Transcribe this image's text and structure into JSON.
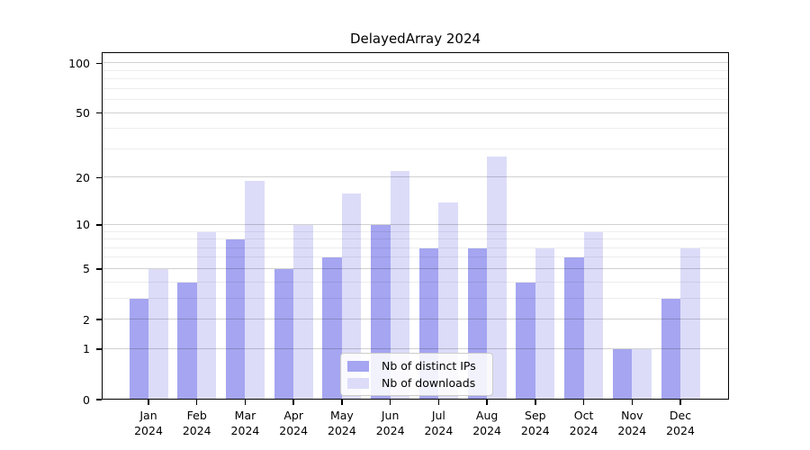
{
  "chart_data": {
    "type": "bar",
    "title": "DelayedArray 2024",
    "year_label": "2024",
    "categories": [
      "Jan",
      "Feb",
      "Mar",
      "Apr",
      "May",
      "Jun",
      "Jul",
      "Aug",
      "Sep",
      "Oct",
      "Nov",
      "Dec"
    ],
    "series": [
      {
        "name": "Nb of distinct IPs",
        "color": "#a5a5f1",
        "values": [
          3,
          4,
          8,
          5,
          6,
          10,
          7,
          7,
          4,
          6,
          1,
          3
        ]
      },
      {
        "name": "Nb of downloads",
        "color": "#dcdcf9",
        "values": [
          5,
          9,
          19,
          10,
          16,
          22,
          14,
          27,
          7,
          9,
          1,
          7
        ]
      }
    ],
    "yscale": "log10(1+y)",
    "ylim": [
      0,
      116.5
    ],
    "yticks": [
      0,
      1,
      2,
      5,
      10,
      20,
      50,
      100
    ],
    "minor_yticks": [
      3,
      4,
      6,
      7,
      8,
      9,
      30,
      40,
      60,
      70,
      80,
      90
    ],
    "grid": true,
    "legend_position": "inside-bottom-center",
    "background_color": "#ffffff",
    "axis_color": "#000000"
  }
}
